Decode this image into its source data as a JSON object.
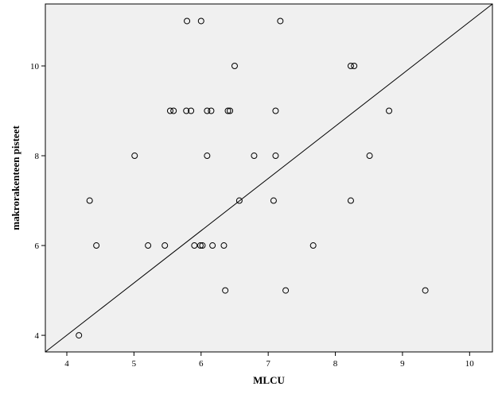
{
  "chart_data": {
    "type": "scatter",
    "x_label": "MLCU",
    "y_label": "makrorakenteen pisteet",
    "x": [
      4.18,
      4.34,
      4.44,
      5.01,
      5.21,
      5.46,
      5.54,
      5.59,
      5.79,
      5.78,
      5.85,
      5.9,
      6.0,
      5.99,
      6.02,
      6.09,
      6.09,
      6.15,
      6.17,
      6.34,
      6.36,
      6.4,
      6.43,
      6.5,
      6.57,
      6.79,
      7.08,
      7.11,
      7.11,
      7.18,
      7.26,
      7.67,
      8.23,
      8.23,
      8.28,
      8.51,
      8.8,
      9.34
    ],
    "values": [
      4,
      7,
      6,
      8,
      6,
      6,
      9,
      9,
      11,
      9,
      9,
      6,
      11,
      6,
      6,
      8,
      9,
      9,
      6,
      6,
      5,
      9,
      9,
      10,
      7,
      8,
      7,
      9,
      8,
      11,
      5,
      6,
      10,
      7,
      10,
      8,
      9,
      5
    ],
    "color": "#000000",
    "background": "#f0f0f0",
    "xlim": [
      3.68,
      10.34
    ],
    "ylim": [
      3.63,
      11.38
    ],
    "xticks": [
      4,
      5,
      6,
      7,
      8,
      9,
      10
    ],
    "yticks": [
      4,
      6,
      8,
      10
    ]
  }
}
